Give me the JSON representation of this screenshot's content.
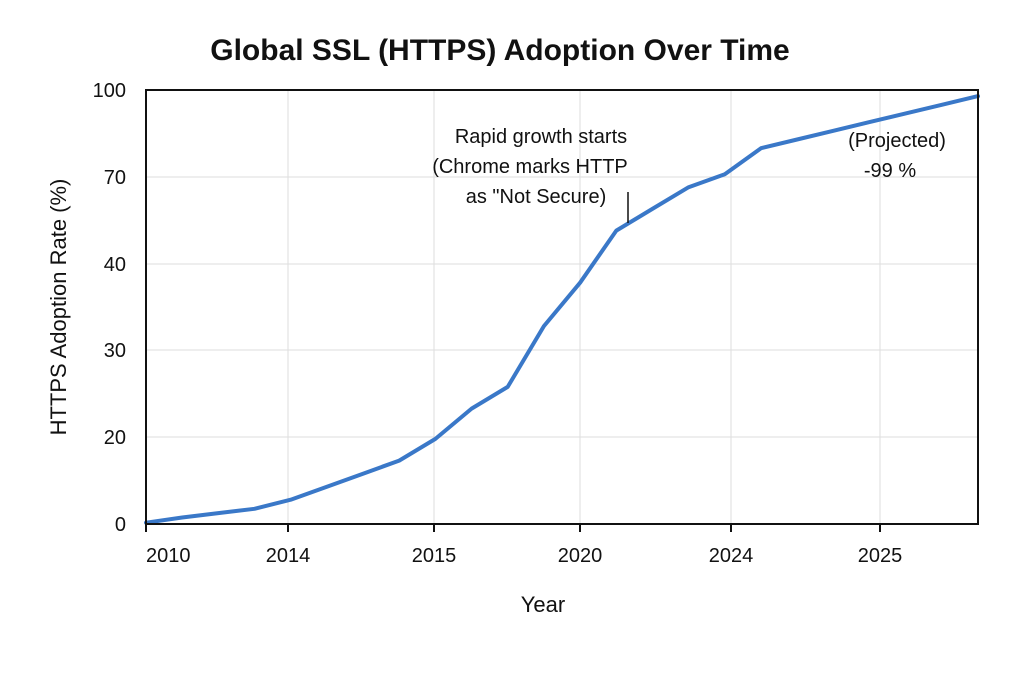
{
  "chart_data": {
    "type": "line",
    "title": "Global SSL (HTTPS) Adoption Over Time",
    "xlabel": "Year",
    "ylabel": "HTTPS Adoption Rate (%)",
    "x_tick_labels": [
      "2010",
      "2014",
      "2015",
      "2020",
      "2024",
      "2025"
    ],
    "y_tick_labels": [
      "0",
      "20",
      "30",
      "40",
      "70",
      "100"
    ],
    "grid": true,
    "legend": "none",
    "series": [
      {
        "values": [
          0.3,
          1.5,
          2.5,
          3.5,
          5.6,
          8.6,
          11.6,
          14.6,
          19.6,
          26.6,
          31.6,
          45.6,
          55.6,
          67.6,
          72.6,
          77.6,
          80.6,
          86.6,
          88.6,
          90.6,
          92.6,
          94.6,
          96.6,
          98.6
        ]
      }
    ],
    "annotations": [
      {
        "lines": [
          "Rapid growth starts",
          "(Chrome marks HTTP",
          "as \"Not Secure)"
        ]
      },
      {
        "lines": [
          "(Projected)",
          "-99 %"
        ]
      }
    ],
    "colors": {
      "line": "#3a78c8"
    }
  }
}
